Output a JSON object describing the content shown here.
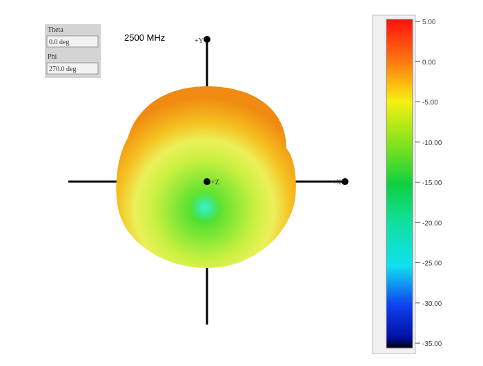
{
  "panel": {
    "theta": {
      "label": "Theta",
      "value": "0.0 deg"
    },
    "phi": {
      "label": "Phi",
      "value": "270.0 deg"
    }
  },
  "frequency": "2500 MHz",
  "axes": {
    "y": "+Y",
    "x": "+X",
    "z": "+Z"
  },
  "colorbar": {
    "labels": [
      "5.00",
      "0.00",
      "-5.00",
      "-10.00",
      "-15.00",
      "-20.00",
      "-25.00",
      "-30.00",
      "-35.00"
    ]
  }
}
